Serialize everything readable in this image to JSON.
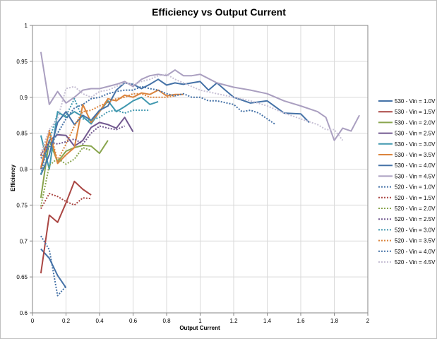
{
  "chart_data": {
    "type": "line",
    "title": "Efficiency vs Output Current",
    "xlabel": "Output Current",
    "ylabel": "Efficiency",
    "xlim": [
      0,
      2
    ],
    "ylim": [
      0.6,
      1
    ],
    "xticks": [
      0,
      0.2,
      0.4,
      0.6,
      0.8,
      1,
      1.2,
      1.4,
      1.6,
      1.8,
      2
    ],
    "xtick_labels": [
      "0",
      "0.2",
      "0.4",
      "0.6",
      "0.8",
      "1",
      "1.2",
      "1.4",
      "1.6",
      "1.8",
      "2"
    ],
    "yticks": [
      0.6,
      0.65,
      0.7,
      0.75,
      0.8,
      0.85,
      0.9,
      0.95,
      1
    ],
    "ytick_labels": [
      "0.6",
      "0.65",
      "0.7",
      "0.75",
      "0.8",
      "0.85",
      "0.9",
      "0.95",
      "1"
    ],
    "grid": true,
    "legend_position": "right",
    "series": [
      {
        "name": "530 - Vin = 1.0V",
        "color": "#4572a7",
        "dash": "solid",
        "points": [
          [
            0.05,
            0.689
          ],
          [
            0.1,
            0.676
          ],
          [
            0.15,
            0.652
          ],
          [
            0.2,
            0.635
          ]
        ]
      },
      {
        "name": "530 - Vin = 1.5V",
        "color": "#aa4643",
        "dash": "solid",
        "points": [
          [
            0.05,
            0.655
          ],
          [
            0.1,
            0.736
          ],
          [
            0.15,
            0.726
          ],
          [
            0.2,
            0.753
          ],
          [
            0.25,
            0.783
          ],
          [
            0.3,
            0.772
          ],
          [
            0.35,
            0.764
          ]
        ]
      },
      {
        "name": "530 - Vin = 2.0V",
        "color": "#89a54e",
        "dash": "solid",
        "points": [
          [
            0.05,
            0.76
          ],
          [
            0.1,
            0.84
          ],
          [
            0.15,
            0.81
          ],
          [
            0.2,
            0.825
          ],
          [
            0.25,
            0.83
          ],
          [
            0.3,
            0.833
          ],
          [
            0.35,
            0.832
          ],
          [
            0.4,
            0.822
          ],
          [
            0.45,
            0.84
          ]
        ]
      },
      {
        "name": "530 - Vin = 2.5V",
        "color": "#71588f",
        "dash": "solid",
        "points": [
          [
            0.05,
            0.8
          ],
          [
            0.1,
            0.84
          ],
          [
            0.15,
            0.848
          ],
          [
            0.2,
            0.847
          ],
          [
            0.25,
            0.832
          ],
          [
            0.3,
            0.84
          ],
          [
            0.35,
            0.858
          ],
          [
            0.4,
            0.865
          ],
          [
            0.45,
            0.862
          ],
          [
            0.5,
            0.857
          ],
          [
            0.55,
            0.872
          ],
          [
            0.6,
            0.852
          ]
        ]
      },
      {
        "name": "530 - Vin = 3.0V",
        "color": "#4198af",
        "dash": "solid",
        "points": [
          [
            0.05,
            0.847
          ],
          [
            0.1,
            0.8
          ],
          [
            0.15,
            0.88
          ],
          [
            0.2,
            0.872
          ],
          [
            0.25,
            0.88
          ],
          [
            0.3,
            0.873
          ],
          [
            0.35,
            0.863
          ],
          [
            0.4,
            0.88
          ],
          [
            0.45,
            0.895
          ],
          [
            0.5,
            0.88
          ],
          [
            0.55,
            0.887
          ],
          [
            0.6,
            0.895
          ],
          [
            0.65,
            0.9
          ],
          [
            0.7,
            0.89
          ],
          [
            0.75,
            0.894
          ]
        ]
      },
      {
        "name": "530 - Vin = 3.5V",
        "color": "#db843d",
        "dash": "solid",
        "points": [
          [
            0.05,
            0.802
          ],
          [
            0.1,
            0.852
          ],
          [
            0.15,
            0.808
          ],
          [
            0.2,
            0.82
          ],
          [
            0.25,
            0.83
          ],
          [
            0.3,
            0.89
          ],
          [
            0.35,
            0.865
          ],
          [
            0.4,
            0.88
          ],
          [
            0.45,
            0.898
          ],
          [
            0.5,
            0.895
          ],
          [
            0.55,
            0.903
          ],
          [
            0.6,
            0.9
          ],
          [
            0.65,
            0.906
          ],
          [
            0.7,
            0.904
          ],
          [
            0.75,
            0.91
          ],
          [
            0.8,
            0.902
          ],
          [
            0.85,
            0.904
          ],
          [
            0.9,
            0.904
          ]
        ]
      },
      {
        "name": "530 - Vin = 4.0V",
        "color": "#4572a7",
        "dash": "solid",
        "points": [
          [
            0.05,
            0.792
          ],
          [
            0.1,
            0.82
          ],
          [
            0.15,
            0.865
          ],
          [
            0.2,
            0.88
          ],
          [
            0.25,
            0.862
          ],
          [
            0.3,
            0.875
          ],
          [
            0.35,
            0.868
          ],
          [
            0.4,
            0.882
          ],
          [
            0.45,
            0.888
          ],
          [
            0.5,
            0.91
          ],
          [
            0.55,
            0.92
          ],
          [
            0.6,
            0.918
          ],
          [
            0.65,
            0.912
          ],
          [
            0.7,
            0.918
          ],
          [
            0.75,
            0.925
          ],
          [
            0.8,
            0.917
          ],
          [
            0.85,
            0.92
          ],
          [
            0.9,
            0.918
          ],
          [
            0.95,
            0.92
          ],
          [
            1.0,
            0.922
          ],
          [
            1.05,
            0.91
          ],
          [
            1.1,
            0.92
          ],
          [
            1.15,
            0.91
          ],
          [
            1.2,
            0.9
          ],
          [
            1.3,
            0.892
          ],
          [
            1.4,
            0.895
          ],
          [
            1.5,
            0.878
          ],
          [
            1.6,
            0.877
          ],
          [
            1.65,
            0.865
          ]
        ]
      },
      {
        "name": "530 - Vin = 4.5V",
        "color": "#aa9fc0",
        "dash": "solid",
        "points": [
          [
            0.05,
            0.963
          ],
          [
            0.1,
            0.89
          ],
          [
            0.15,
            0.908
          ],
          [
            0.2,
            0.892
          ],
          [
            0.25,
            0.9
          ],
          [
            0.3,
            0.91
          ],
          [
            0.35,
            0.912
          ],
          [
            0.4,
            0.912
          ],
          [
            0.45,
            0.915
          ],
          [
            0.5,
            0.918
          ],
          [
            0.55,
            0.922
          ],
          [
            0.6,
            0.915
          ],
          [
            0.65,
            0.925
          ],
          [
            0.7,
            0.93
          ],
          [
            0.75,
            0.932
          ],
          [
            0.8,
            0.93
          ],
          [
            0.85,
            0.938
          ],
          [
            0.9,
            0.93
          ],
          [
            0.95,
            0.93
          ],
          [
            1.0,
            0.932
          ],
          [
            1.1,
            0.92
          ],
          [
            1.2,
            0.914
          ],
          [
            1.3,
            0.91
          ],
          [
            1.4,
            0.905
          ],
          [
            1.5,
            0.895
          ],
          [
            1.6,
            0.888
          ],
          [
            1.7,
            0.88
          ],
          [
            1.75,
            0.872
          ],
          [
            1.8,
            0.84
          ],
          [
            1.85,
            0.857
          ],
          [
            1.9,
            0.853
          ],
          [
            1.95,
            0.875
          ]
        ]
      },
      {
        "name": "520 - Vin = 1.0V",
        "color": "#4572a7",
        "dash": "dotted",
        "points": [
          [
            0.05,
            0.707
          ],
          [
            0.1,
            0.688
          ],
          [
            0.15,
            0.624
          ],
          [
            0.2,
            0.637
          ]
        ]
      },
      {
        "name": "520 - Vin = 1.5V",
        "color": "#aa4643",
        "dash": "dotted",
        "points": [
          [
            0.05,
            0.745
          ],
          [
            0.1,
            0.766
          ],
          [
            0.15,
            0.762
          ],
          [
            0.2,
            0.755
          ],
          [
            0.25,
            0.75
          ],
          [
            0.3,
            0.76
          ],
          [
            0.35,
            0.759
          ]
        ]
      },
      {
        "name": "520 - Vin = 2.0V",
        "color": "#89a54e",
        "dash": "dotted",
        "points": [
          [
            0.05,
            0.748
          ],
          [
            0.1,
            0.805
          ],
          [
            0.15,
            0.815
          ],
          [
            0.2,
            0.807
          ],
          [
            0.25,
            0.814
          ],
          [
            0.3,
            0.83
          ],
          [
            0.35,
            0.826
          ]
        ]
      },
      {
        "name": "520 - Vin = 2.5V",
        "color": "#71588f",
        "dash": "dotted",
        "points": [
          [
            0.05,
            0.82
          ],
          [
            0.1,
            0.838
          ],
          [
            0.15,
            0.835
          ],
          [
            0.2,
            0.838
          ],
          [
            0.25,
            0.842
          ],
          [
            0.3,
            0.835
          ],
          [
            0.35,
            0.85
          ],
          [
            0.4,
            0.86
          ],
          [
            0.45,
            0.857
          ],
          [
            0.5,
            0.855
          ],
          [
            0.55,
            0.86
          ]
        ]
      },
      {
        "name": "520 - Vin = 3.0V",
        "color": "#4198af",
        "dash": "dotted",
        "points": [
          [
            0.05,
            0.793
          ],
          [
            0.1,
            0.84
          ],
          [
            0.15,
            0.878
          ],
          [
            0.2,
            0.874
          ],
          [
            0.25,
            0.898
          ],
          [
            0.3,
            0.87
          ],
          [
            0.35,
            0.868
          ],
          [
            0.4,
            0.872
          ],
          [
            0.45,
            0.88
          ],
          [
            0.5,
            0.882
          ],
          [
            0.55,
            0.878
          ],
          [
            0.6,
            0.882
          ],
          [
            0.65,
            0.882
          ],
          [
            0.7,
            0.882
          ]
        ]
      },
      {
        "name": "520 - Vin = 3.5V",
        "color": "#db843d",
        "dash": "dotted",
        "points": [
          [
            0.05,
            0.818
          ],
          [
            0.1,
            0.855
          ],
          [
            0.15,
            0.812
          ],
          [
            0.2,
            0.835
          ],
          [
            0.25,
            0.86
          ],
          [
            0.3,
            0.88
          ],
          [
            0.35,
            0.882
          ],
          [
            0.4,
            0.888
          ],
          [
            0.45,
            0.893
          ],
          [
            0.5,
            0.898
          ],
          [
            0.55,
            0.9
          ],
          [
            0.6,
            0.905
          ],
          [
            0.65,
            0.905
          ],
          [
            0.7,
            0.9
          ],
          [
            0.75,
            0.9
          ],
          [
            0.8,
            0.9
          ],
          [
            0.85,
            0.902
          ]
        ]
      },
      {
        "name": "520 - Vin = 4.0V",
        "color": "#4572a7",
        "dash": "dotted",
        "points": [
          [
            0.05,
            0.815
          ],
          [
            0.1,
            0.83
          ],
          [
            0.15,
            0.85
          ],
          [
            0.2,
            0.87
          ],
          [
            0.25,
            0.885
          ],
          [
            0.3,
            0.89
          ],
          [
            0.35,
            0.898
          ],
          [
            0.4,
            0.9
          ],
          [
            0.45,
            0.905
          ],
          [
            0.5,
            0.908
          ],
          [
            0.55,
            0.91
          ],
          [
            0.6,
            0.91
          ],
          [
            0.65,
            0.915
          ],
          [
            0.7,
            0.912
          ],
          [
            0.75,
            0.91
          ],
          [
            0.8,
            0.905
          ],
          [
            0.85,
            0.902
          ],
          [
            0.9,
            0.905
          ],
          [
            0.95,
            0.9
          ],
          [
            1.0,
            0.9
          ],
          [
            1.05,
            0.895
          ],
          [
            1.1,
            0.895
          ],
          [
            1.2,
            0.89
          ],
          [
            1.25,
            0.88
          ],
          [
            1.3,
            0.882
          ],
          [
            1.35,
            0.878
          ],
          [
            1.4,
            0.87
          ],
          [
            1.45,
            0.862
          ]
        ]
      },
      {
        "name": "520 - Vin = 4.5V",
        "color": "#c6bfd4",
        "dash": "dotted",
        "points": [
          [
            0.05,
            0.822
          ],
          [
            0.1,
            0.855
          ],
          [
            0.15,
            0.87
          ],
          [
            0.2,
            0.912
          ],
          [
            0.25,
            0.915
          ],
          [
            0.3,
            0.905
          ],
          [
            0.35,
            0.9
          ],
          [
            0.4,
            0.908
          ],
          [
            0.45,
            0.91
          ],
          [
            0.5,
            0.915
          ],
          [
            0.55,
            0.92
          ],
          [
            0.6,
            0.918
          ],
          [
            0.65,
            0.922
          ],
          [
            0.7,
            0.925
          ],
          [
            0.75,
            0.93
          ],
          [
            0.8,
            0.932
          ],
          [
            0.85,
            0.925
          ],
          [
            0.9,
            0.92
          ],
          [
            0.95,
            0.915
          ],
          [
            1.0,
            0.91
          ],
          [
            1.1,
            0.905
          ],
          [
            1.2,
            0.9
          ],
          [
            1.3,
            0.895
          ],
          [
            1.4,
            0.888
          ],
          [
            1.5,
            0.878
          ],
          [
            1.6,
            0.87
          ],
          [
            1.7,
            0.862
          ],
          [
            1.75,
            0.855
          ],
          [
            1.8,
            0.855
          ],
          [
            1.85,
            0.84
          ]
        ]
      }
    ]
  }
}
